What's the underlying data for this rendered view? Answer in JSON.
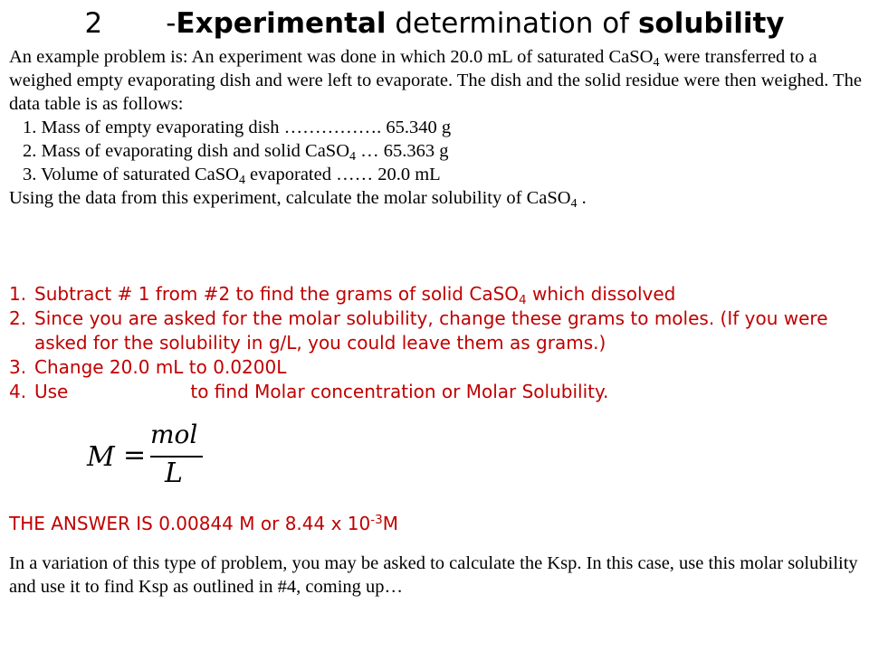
{
  "title": {
    "number": "2",
    "prefix": "-",
    "word1": "Experimental",
    "middle": " determination of ",
    "word2": "solubility"
  },
  "example": {
    "para1_a": "An example problem is:  An experiment was done in which 20.0 mL of saturated CaSO",
    "para1_sub": "4",
    "para1_b": "were transferred to a weighed empty evaporating dish and were left to evaporate. The dish and the solid residue were then weighed. The data table is as follows:",
    "data_rows": [
      {
        "a": "1. Mass of empty evaporating dish ……………. 65.340 g"
      },
      {
        "a": "2. Mass of evaporating dish and solid CaSO",
        "sub": "4",
        "b": " …  65.363 g"
      },
      {
        "a": "3. Volume of saturated CaSO",
        "sub": "4",
        "b": " evaporated ……  20.0 mL"
      }
    ],
    "question_a": "Using the data from this experiment, calculate the molar solubility of CaSO",
    "question_sub": "4",
    "question_b": " ."
  },
  "steps": [
    {
      "num": "1.",
      "a": "Subtract # 1 from #2 to find the grams of solid CaSO",
      "sub": "4",
      "b": " which dissolved"
    },
    {
      "num": "2.",
      "a": "Since you are asked for the molar solubility, change these grams to moles. (If you were asked for the solubility in g/L, you could leave them as grams.)"
    },
    {
      "num": "3.",
      "a": "Change 20.0 mL to 0.0200L"
    },
    {
      "num": "4.",
      "a": "Use",
      "b": "to find Molar concentration or Molar Solubility."
    }
  ],
  "formula": {
    "lhs": "M",
    "eq": "=",
    "numerator": "mol",
    "denominator": "L"
  },
  "answer": {
    "a": "THE ANSWER IS 0.00844 M or 8.44 x 10",
    "sup": "-3",
    "b": "M"
  },
  "variation": "In a variation of this type of problem, you may be asked to calculate the Ksp. In this case, use this molar solubility and use it to find Ksp as outlined in #4, coming up…",
  "colors": {
    "steps_text": "#c00000",
    "body_text": "#000000",
    "background": "#ffffff"
  }
}
